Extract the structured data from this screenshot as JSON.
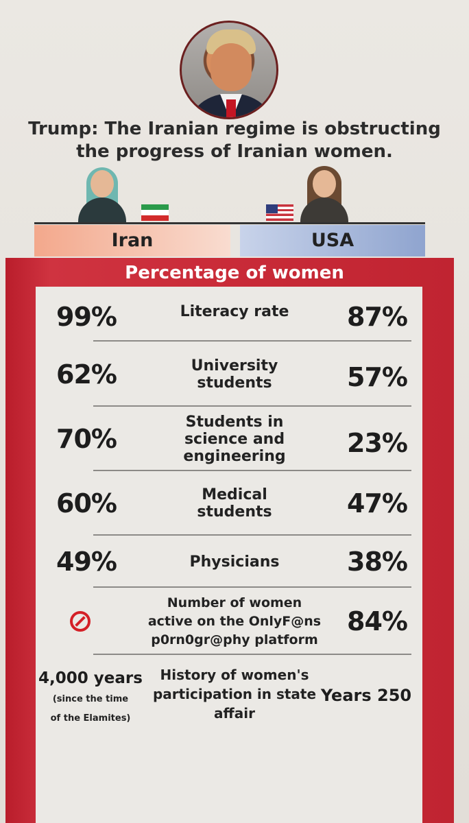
{
  "header": {
    "headline_line1": "Trump: The Iranian regime is obstructing",
    "headline_line2": "the progress of Iranian women."
  },
  "columns": {
    "iran": "Iran",
    "usa": "USA"
  },
  "section_title": "Percentage of women",
  "rows": [
    {
      "iran": "99%",
      "label": "Literacy rate",
      "usa": "87%"
    },
    {
      "iran": "62%",
      "label": "University students",
      "usa": "57%"
    },
    {
      "iran": "70%",
      "label": "Students in science and engineering",
      "usa": "23%"
    },
    {
      "iran": "60%",
      "label": "Medical students",
      "usa": "47%"
    },
    {
      "iran": "49%",
      "label": "Physicians",
      "usa": "38%"
    },
    {
      "iran_icon": "prohibited-icon",
      "label": "Number of women active on the OnlyF@ns p0rn0gr@phy platform",
      "usa": "84%"
    }
  ],
  "history": {
    "iran_value": "4,000 years",
    "iran_note_line1": "(since the time",
    "iran_note_line2": "of the Elamites)",
    "label": "History of women's participation in state affair",
    "usa_value": "Years 250"
  },
  "colors": {
    "frame_red": "#c92b38",
    "iran_header": "#f3a88c",
    "usa_header": "#8fa4cf"
  }
}
